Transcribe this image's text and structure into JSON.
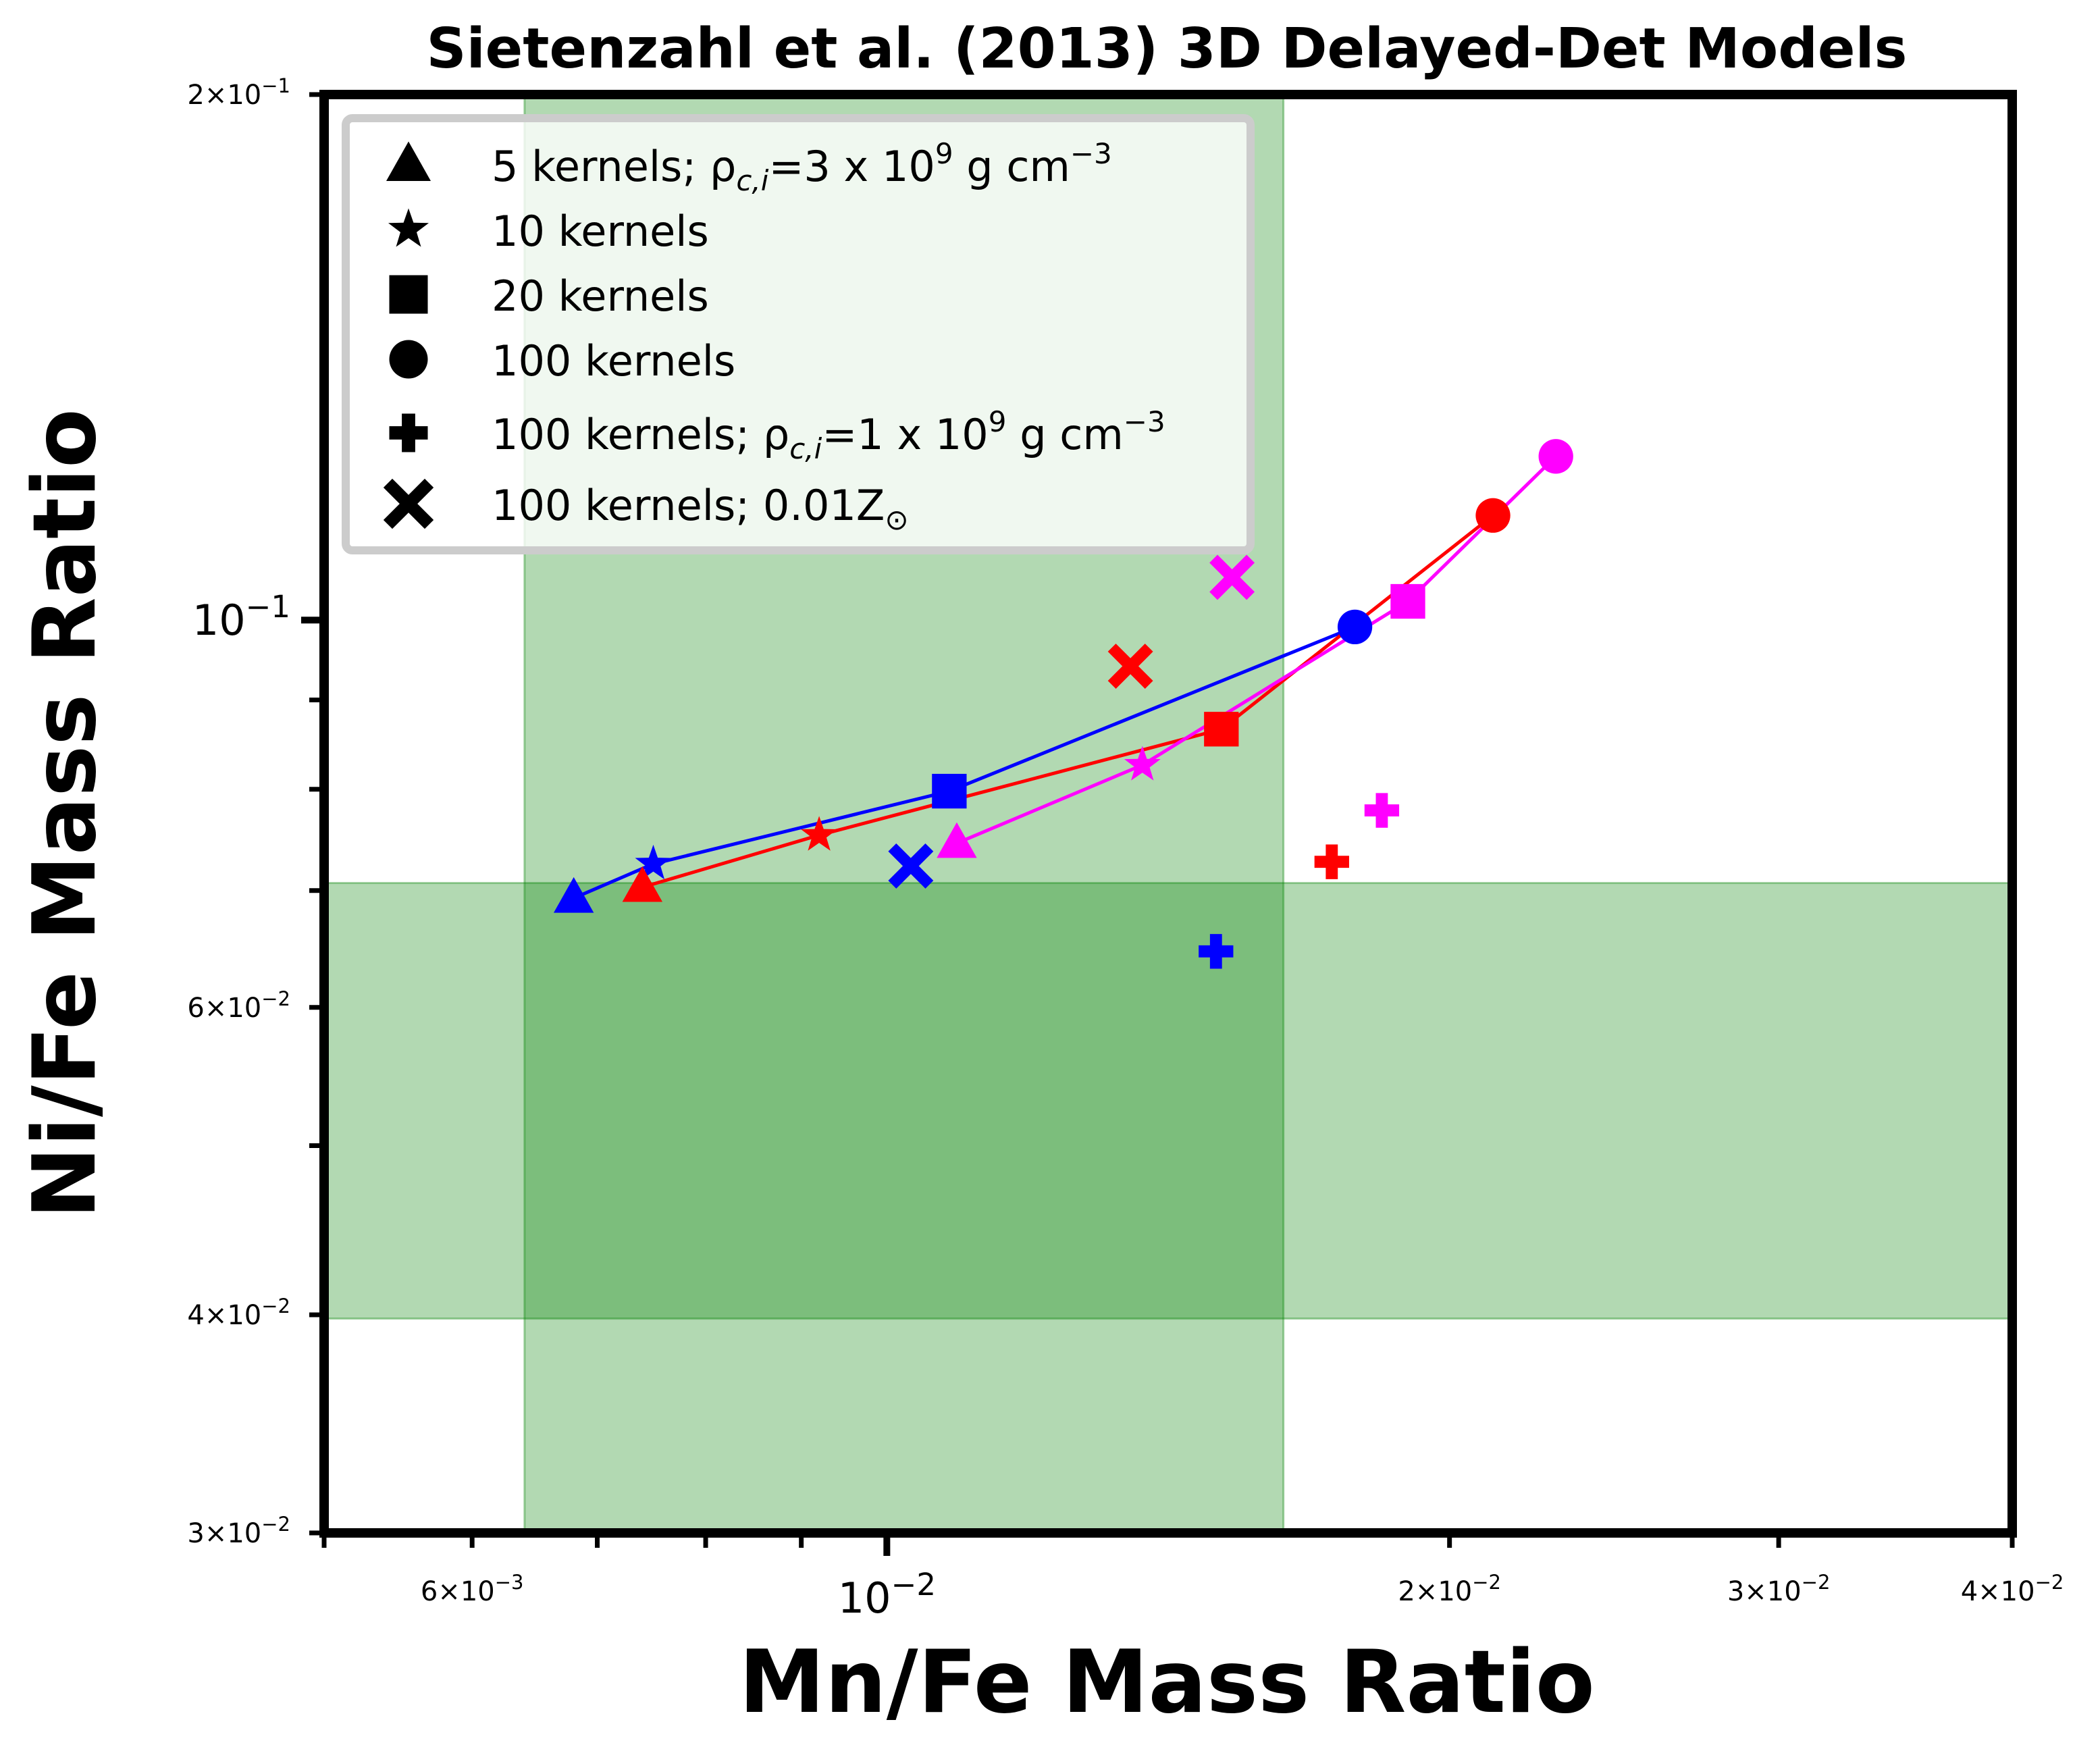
{
  "chart_data": {
    "type": "scatter",
    "title": "Sietenzahl et al. (2013) 3D Delayed-Det Models",
    "xlabel": "Mn/Fe Mass Ratio",
    "ylabel": "Ni/Fe Mass Ratio",
    "xscale": "log",
    "yscale": "log",
    "xlim": [
      0.005,
      0.04
    ],
    "ylim": [
      0.03,
      0.2
    ],
    "grid": false,
    "legend_position": "upper-left",
    "x_tick_labels": [
      {
        "value": 0.006,
        "mant": "6",
        "exp": "-3",
        "major": false
      },
      {
        "value": 0.01,
        "mant": "",
        "exp": "-2",
        "major": true
      },
      {
        "value": 0.02,
        "mant": "2",
        "exp": "-2",
        "major": false
      },
      {
        "value": 0.03,
        "mant": "3",
        "exp": "-2",
        "major": false
      },
      {
        "value": 0.04,
        "mant": "4",
        "exp": "-2",
        "major": false
      }
    ],
    "y_tick_labels": [
      {
        "value": 0.03,
        "mant": "3",
        "exp": "-2",
        "major": false
      },
      {
        "value": 0.04,
        "mant": "4",
        "exp": "-2",
        "major": false
      },
      {
        "value": 0.06,
        "mant": "6",
        "exp": "-2",
        "major": false
      },
      {
        "value": 0.1,
        "mant": "",
        "exp": "-1",
        "major": true
      },
      {
        "value": 0.2,
        "mant": "2",
        "exp": "-1",
        "major": false
      }
    ],
    "shaded_regions": [
      {
        "axis": "x",
        "range": [
          0.0064,
          0.0163
        ],
        "color": "#008000",
        "alpha": 0.3
      },
      {
        "axis": "y",
        "range": [
          0.0398,
          0.0707
        ],
        "color": "#008000",
        "alpha": 0.3
      }
    ],
    "legend": [
      {
        "marker": "triangle",
        "text": "5 kernels; ρ",
        "sub": "c,i",
        "rest": "=3 x 10",
        "sup": "9",
        "tail": " g cm",
        "sup2": "−3"
      },
      {
        "marker": "star",
        "text": "10 kernels"
      },
      {
        "marker": "square",
        "text": "20 kernels"
      },
      {
        "marker": "circle",
        "text": "100 kernels"
      },
      {
        "marker": "plus",
        "text": "100 kernels; ρ",
        "sub": "c,i",
        "rest": "=1 x 10",
        "sup": "9",
        "tail": " g cm",
        "sup2": "−3"
      },
      {
        "marker": "x",
        "text": "100 kernels; 0.01Z",
        "sub": "⊙"
      }
    ],
    "series": [
      {
        "color": "#0000ff",
        "line": [
          [
            0.0068,
            0.0693
          ],
          [
            0.0075,
            0.0725
          ],
          [
            0.0108,
            0.0798
          ],
          [
            0.0178,
            0.0991
          ]
        ],
        "points": [
          {
            "marker": "triangle",
            "x": 0.0068,
            "y": 0.0693
          },
          {
            "marker": "star",
            "x": 0.0075,
            "y": 0.0725
          },
          {
            "marker": "square",
            "x": 0.0108,
            "y": 0.0798
          },
          {
            "marker": "circle",
            "x": 0.0178,
            "y": 0.0991
          },
          {
            "marker": "plus",
            "x": 0.015,
            "y": 0.0646
          },
          {
            "marker": "x",
            "x": 0.0103,
            "y": 0.0723
          }
        ]
      },
      {
        "color": "#ff0000",
        "line": [
          [
            0.0074,
            0.0703
          ],
          [
            0.0092,
            0.0753
          ],
          [
            0.0151,
            0.0866
          ],
          [
            0.0211,
            0.1148
          ]
        ],
        "points": [
          {
            "marker": "triangle",
            "x": 0.0074,
            "y": 0.0703
          },
          {
            "marker": "star",
            "x": 0.0092,
            "y": 0.0753
          },
          {
            "marker": "square",
            "x": 0.0151,
            "y": 0.0866
          },
          {
            "marker": "circle",
            "x": 0.0211,
            "y": 0.1148
          },
          {
            "marker": "plus",
            "x": 0.0173,
            "y": 0.0727
          },
          {
            "marker": "x",
            "x": 0.0135,
            "y": 0.0941
          }
        ]
      },
      {
        "color": "#ff00ff",
        "line": [
          [
            0.0109,
            0.0745
          ],
          [
            0.0137,
            0.0826
          ],
          [
            0.019,
            0.1025
          ],
          [
            0.0228,
            0.1241
          ]
        ],
        "points": [
          {
            "marker": "triangle",
            "x": 0.0109,
            "y": 0.0745
          },
          {
            "marker": "star",
            "x": 0.0137,
            "y": 0.0826
          },
          {
            "marker": "square",
            "x": 0.019,
            "y": 0.1025
          },
          {
            "marker": "circle",
            "x": 0.0228,
            "y": 0.1241
          },
          {
            "marker": "plus",
            "x": 0.0184,
            "y": 0.0778
          },
          {
            "marker": "x",
            "x": 0.0153,
            "y": 0.1058
          }
        ]
      }
    ]
  }
}
